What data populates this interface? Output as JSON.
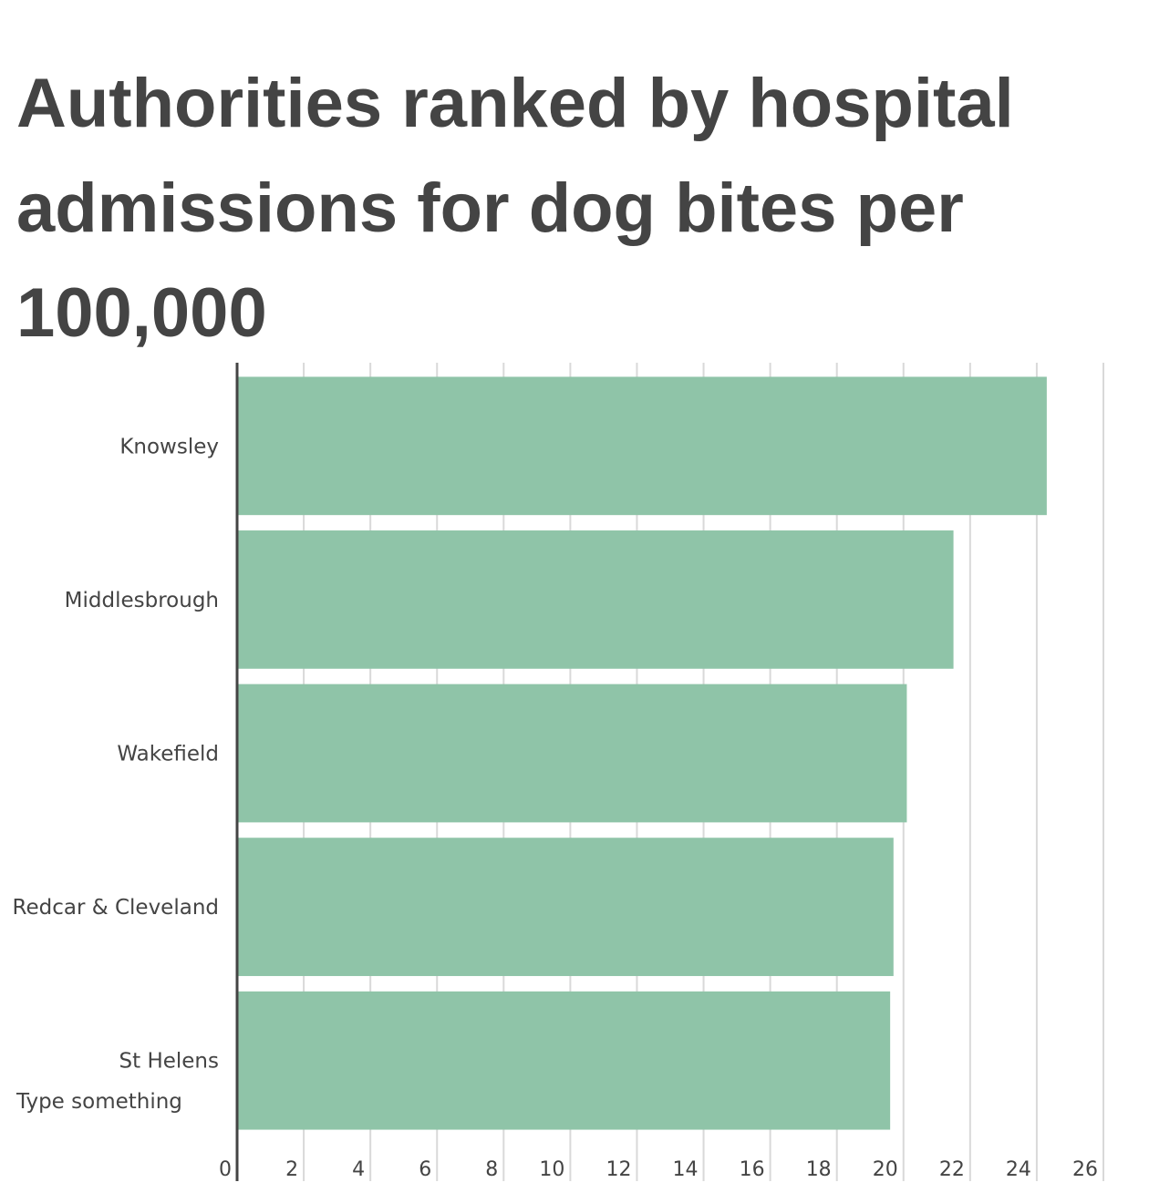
{
  "chart_data": {
    "type": "bar",
    "orientation": "horizontal",
    "title": "Authorities ranked by hospital admissions for dog bites per 100,000",
    "categories": [
      "Knowsley",
      "Middlesbrough",
      "Wakefield",
      "Redcar & Cleveland",
      "St Helens"
    ],
    "values": [
      24.3,
      21.5,
      20.1,
      19.7,
      19.6
    ],
    "xlim": [
      0,
      26
    ],
    "x_ticks": [
      0,
      2,
      4,
      6,
      8,
      10,
      12,
      14,
      16,
      18,
      20,
      22,
      24,
      26
    ],
    "xlabel": "",
    "ylabel": "",
    "grid": true,
    "legend": "none",
    "bar_color": "#8fc4a8",
    "annotation": "Type something"
  }
}
